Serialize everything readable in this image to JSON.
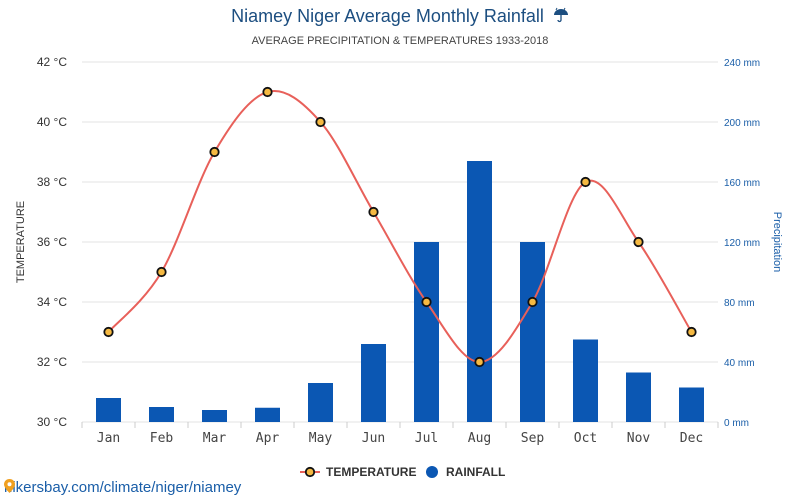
{
  "header": {
    "title": "Niamey Niger Average Monthly Rainfall",
    "title_icon": "umbrella-rain-icon",
    "subtitle": "AVERAGE PRECIPITATION & TEMPERATURES 1933-2018"
  },
  "footer": {
    "link_text": "hikersbay.com/climate/niger/niamey",
    "icon": "location-pin-icon"
  },
  "colors": {
    "temperature_line": "#e8605a",
    "temperature_marker_fill": "#f5b942",
    "rainfall_bar": "#0b57b3",
    "grid": "#e3e3e3",
    "left_axis_text": "#333333",
    "right_axis_text": "#1a5ea8"
  },
  "chart_data": {
    "type": "bar",
    "categories": [
      "Jan",
      "Feb",
      "Mar",
      "Apr",
      "May",
      "Jun",
      "Jul",
      "Aug",
      "Sep",
      "Oct",
      "Nov",
      "Dec"
    ],
    "left_axis": {
      "label": "TEMPERATURE",
      "unit": "°C",
      "range": [
        30,
        42
      ],
      "ticks": [
        "30 °C",
        "32 °C",
        "34 °C",
        "36 °C",
        "38 °C",
        "40 °C",
        "42 °C"
      ],
      "tick_values": [
        30,
        32,
        34,
        36,
        38,
        40,
        42
      ]
    },
    "right_axis": {
      "label": "Precipitation",
      "unit": "mm",
      "range": [
        0,
        240
      ],
      "ticks": [
        "0 mm",
        "40 mm",
        "80 mm",
        "120 mm",
        "160 mm",
        "200 mm",
        "240 mm"
      ],
      "tick_values": [
        0,
        40,
        80,
        120,
        160,
        200,
        240
      ]
    },
    "series": [
      {
        "name": "RAINFALL",
        "type": "bar",
        "axis": "right",
        "values": [
          16,
          10,
          8,
          9.5,
          26,
          52,
          120,
          174,
          120,
          55,
          33,
          23
        ]
      },
      {
        "name": "TEMPERATURE",
        "type": "line",
        "axis": "left",
        "values": [
          33,
          35,
          39,
          41,
          40,
          37,
          34,
          32,
          34,
          38,
          36,
          33
        ]
      }
    ],
    "legend": {
      "position": "bottom",
      "items": [
        "TEMPERATURE",
        "RAINFALL"
      ]
    },
    "grid": true
  }
}
